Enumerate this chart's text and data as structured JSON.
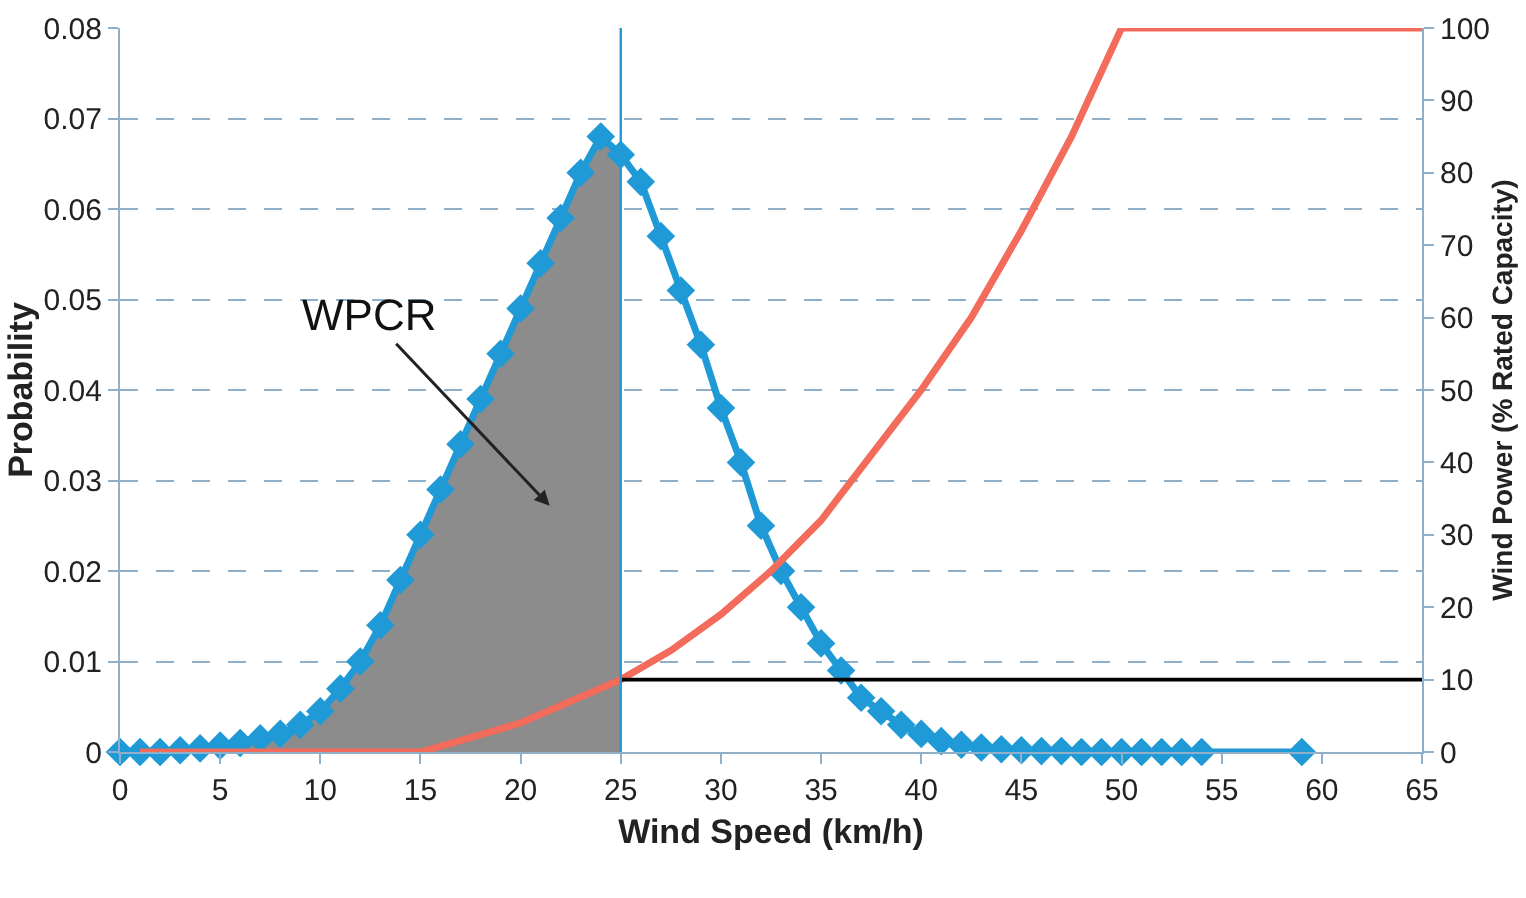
{
  "chart_data": {
    "type": "line",
    "xlabel": "Wind Speed (km/h)",
    "ylabel": "Probability",
    "y2label": "Wind Power (% Rated Capacity)",
    "xlim": [
      0,
      65
    ],
    "xticks": [
      0,
      5,
      10,
      15,
      20,
      25,
      30,
      35,
      40,
      45,
      50,
      55,
      60,
      65
    ],
    "ylim": [
      0,
      0.08
    ],
    "yticks": [
      0,
      0.01,
      0.02,
      0.03,
      0.04,
      0.05,
      0.06,
      0.07,
      0.08
    ],
    "y2lim": [
      0,
      100
    ],
    "y2ticks": [
      0,
      10,
      20,
      30,
      40,
      50,
      60,
      70,
      80,
      90,
      100
    ],
    "grid": "y",
    "marker": "diamond",
    "line_style": "solid",
    "series": [
      {
        "type": "area",
        "color": "#8c8c8c",
        "marker": "none",
        "x": [
          0,
          1,
          2,
          3,
          4,
          5,
          6,
          7,
          8,
          9,
          10,
          11,
          12,
          13,
          14,
          15,
          16,
          17,
          18,
          19,
          20,
          21,
          22,
          23,
          24,
          25
        ],
        "values": [
          0,
          0,
          0,
          0.0002,
          0.0004,
          0.0007,
          0.001,
          0.0015,
          0.002,
          0.003,
          0.0045,
          0.007,
          0.01,
          0.014,
          0.019,
          0.024,
          0.029,
          0.034,
          0.039,
          0.044,
          0.049,
          0.054,
          0.059,
          0.064,
          0.068,
          0.066
        ]
      },
      {
        "color": "#1f9ad6",
        "x": [
          0,
          1,
          2,
          3,
          4,
          5,
          6,
          7,
          8,
          9,
          10,
          11,
          12,
          13,
          14,
          15,
          16,
          17,
          18,
          19,
          20,
          21,
          22,
          23,
          24,
          25,
          26,
          27,
          28,
          29,
          30,
          31,
          32,
          33,
          34,
          35,
          36,
          37,
          38,
          39,
          40,
          41,
          42,
          43,
          44,
          45,
          46,
          47,
          48,
          49,
          50,
          51,
          52,
          53,
          54,
          59
        ],
        "values": [
          0,
          0,
          0,
          0.0002,
          0.0004,
          0.0007,
          0.001,
          0.0015,
          0.002,
          0.003,
          0.0045,
          0.007,
          0.01,
          0.014,
          0.019,
          0.024,
          0.029,
          0.034,
          0.039,
          0.044,
          0.049,
          0.054,
          0.059,
          0.064,
          0.068,
          0.066,
          0.063,
          0.057,
          0.051,
          0.045,
          0.038,
          0.032,
          0.025,
          0.02,
          0.016,
          0.012,
          0.009,
          0.006,
          0.0045,
          0.003,
          0.002,
          0.0012,
          0.0008,
          0.0005,
          0.0003,
          0.0002,
          0.0001,
          0.0001,
          0,
          0,
          0,
          0,
          0,
          0,
          0,
          0
        ]
      },
      {
        "color": "#f26b5b",
        "axis": "y2",
        "marker": "none",
        "x": [
          1,
          15,
          17.5,
          20,
          22.5,
          25,
          27.5,
          30,
          32.5,
          35,
          37.5,
          40,
          42.5,
          45,
          47.5,
          50,
          65
        ],
        "values": [
          0,
          0,
          2,
          4,
          7,
          10,
          14,
          19,
          25,
          32,
          41,
          50,
          60,
          72,
          85,
          100,
          100
        ]
      },
      {
        "color": "#000000",
        "axis": "y2",
        "marker": "none",
        "x": [
          25,
          65
        ],
        "values": [
          10,
          10
        ]
      }
    ],
    "ref_lines": [
      {
        "axis": "x",
        "value": 25,
        "color": "#1f9ad6"
      }
    ],
    "annotations": [
      "WPCR"
    ]
  }
}
